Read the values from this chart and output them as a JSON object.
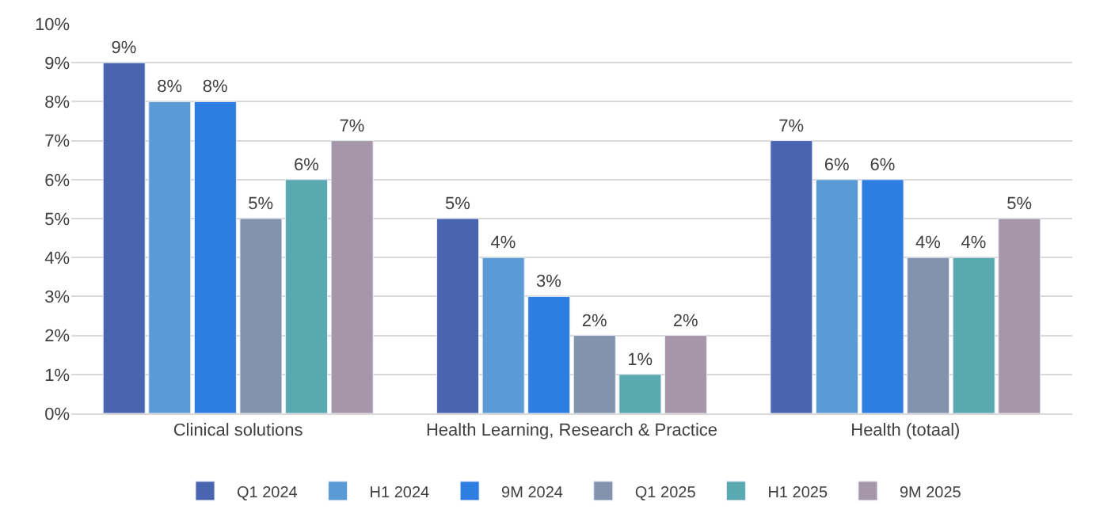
{
  "chart_data": {
    "type": "bar",
    "categories": [
      "Clinical solutions",
      "Health Learning, Research & Practice",
      "Health (totaal)"
    ],
    "series": [
      {
        "name": "Q1 2024",
        "color": "#4a65b0",
        "values": [
          9,
          5,
          7
        ],
        "value_labels": [
          "9%",
          "5%",
          "7%"
        ]
      },
      {
        "name": "H1 2024",
        "color": "#5b9bd5",
        "values": [
          8,
          4,
          6
        ],
        "value_labels": [
          "8%",
          "4%",
          "6%"
        ]
      },
      {
        "name": "9M 2024",
        "color": "#2e7de0",
        "values": [
          8,
          3,
          6
        ],
        "value_labels": [
          "8%",
          "3%",
          "6%"
        ]
      },
      {
        "name": "Q1 2025",
        "color": "#8493ad",
        "values": [
          5,
          2,
          4
        ],
        "value_labels": [
          "5%",
          "2%",
          "4%"
        ]
      },
      {
        "name": "H1 2025",
        "color": "#5aa8b0",
        "values": [
          6,
          1,
          4
        ],
        "value_labels": [
          "6%",
          "1%",
          "4%"
        ]
      },
      {
        "name": "9M 2025",
        "color": "#a596a8",
        "values": [
          7,
          2,
          5
        ],
        "value_labels": [
          "7%",
          "2%",
          "5%"
        ]
      }
    ],
    "ylim": [
      0,
      10
    ],
    "yticks": [
      {
        "value": 0,
        "label": "0%"
      },
      {
        "value": 1,
        "label": "1%"
      },
      {
        "value": 2,
        "label": "2%"
      },
      {
        "value": 3,
        "label": "3%"
      },
      {
        "value": 4,
        "label": "4%"
      },
      {
        "value": 5,
        "label": "5%"
      },
      {
        "value": 6,
        "label": "6%"
      },
      {
        "value": 7,
        "label": "7%"
      },
      {
        "value": 8,
        "label": "8%"
      },
      {
        "value": 9,
        "label": "9%"
      },
      {
        "value": 10,
        "label": "10%"
      }
    ],
    "grid": "y",
    "legend": "bottom"
  }
}
